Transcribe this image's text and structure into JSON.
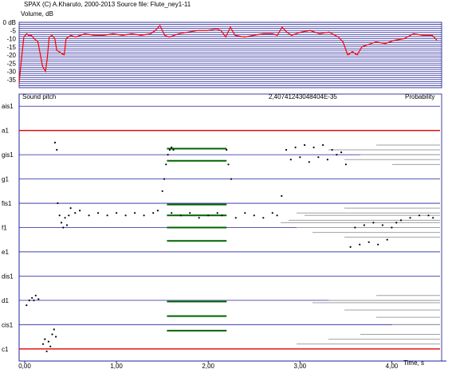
{
  "header": {
    "line": "SPAX  (C)  A.Kharuto,  2000-2013   Source file:  Flute_ney1-11",
    "volume_label": "Volume, dB"
  },
  "pitch": {
    "title": "Sound pitch",
    "value_readout": "2,40741243048404E-35",
    "probability_label": "Probability"
  },
  "chart_data": [
    {
      "type": "line",
      "title": "Volume, dB",
      "ylabel": "Volume, dB",
      "ylim": [
        -40,
        0
      ],
      "yticks": [
        "0 dB",
        "-5",
        "-10",
        "-15",
        "-20",
        "-25",
        "-30",
        "-35"
      ],
      "color": "#ff0000",
      "series": [
        {
          "x": [
            0.0,
            0.02,
            0.05,
            0.08,
            0.1,
            0.13,
            0.16,
            0.2,
            0.25,
            0.28,
            0.3,
            0.32,
            0.35,
            0.38,
            0.4,
            0.45,
            0.48,
            0.5,
            0.55,
            0.6,
            0.7,
            0.8,
            0.9,
            1.0,
            1.1,
            1.2,
            1.3,
            1.4,
            1.45,
            1.5,
            1.55,
            1.6,
            1.65,
            1.7,
            1.8,
            1.9,
            2.0,
            2.1,
            2.15,
            2.2,
            2.25,
            2.3,
            2.4,
            2.5,
            2.6,
            2.7,
            2.75,
            2.8,
            2.85,
            2.9,
            3.0,
            3.1,
            3.2,
            3.3,
            3.4,
            3.45,
            3.5,
            3.55,
            3.6,
            3.65,
            3.7,
            3.8,
            3.9,
            4.0,
            4.1,
            4.2,
            4.3,
            4.4,
            4.45
          ],
          "values": [
            -37,
            -25,
            -9,
            -7,
            -8,
            -8,
            -10,
            -12,
            -27,
            -30,
            -22,
            -9,
            -8,
            -10,
            -17,
            -19,
            -20,
            -10,
            -8,
            -9,
            -7,
            -8,
            -8,
            -7,
            -8,
            -7,
            -8,
            -7,
            -5,
            -2,
            -8,
            -9,
            -8,
            -7,
            -6,
            -5,
            -5,
            -4,
            -5,
            -9,
            -3,
            -8,
            -9,
            -8,
            -7,
            -7,
            -8,
            -3,
            -6,
            -8,
            -6,
            -5,
            -7,
            -6,
            -9,
            -12,
            -20,
            -18,
            -20,
            -15,
            -14,
            -12,
            -13,
            -11,
            -10,
            -7,
            -8,
            -8,
            -11
          ]
        }
      ]
    },
    {
      "type": "scatter",
      "title": "Sound pitch",
      "xlabel": "Time, s",
      "xlim": [
        0,
        4.5
      ],
      "xticks": [
        "0,00",
        "1,00",
        "2,00",
        "3,00",
        "4,00"
      ],
      "y_categories": [
        "c1",
        "cis1",
        "d1",
        "dis1",
        "e1",
        "f1",
        "fis1",
        "g1",
        "gis1",
        "a1",
        "ais1"
      ],
      "ylim": [
        -0.5,
        10.5
      ],
      "reference_lines": [
        {
          "note": "c1",
          "color": "#e00000"
        },
        {
          "note": "a1",
          "color": "#e00000"
        }
      ],
      "other_note_line_color": "#2020a0",
      "pitch_color": "#000000",
      "segments": [
        {
          "x": [
            0.02,
            0.05,
            0.08,
            0.1,
            0.12,
            0.15
          ],
          "values": [
            1.8,
            2.0,
            2.1,
            2.0,
            2.2,
            2.05
          ]
        },
        {
          "x": [
            0.2,
            0.22,
            0.24,
            0.26,
            0.28,
            0.3,
            0.32,
            0.34
          ],
          "values": [
            0.2,
            0.4,
            -0.1,
            0.3,
            0.1,
            0.6,
            0.8,
            0.5
          ]
        },
        {
          "x": [
            0.33,
            0.35
          ],
          "values": [
            8.5,
            8.2
          ]
        },
        {
          "x": [
            0.36,
            0.38,
            0.4,
            0.42,
            0.44,
            0.46,
            0.48,
            0.5,
            0.55,
            0.6,
            0.7,
            0.8,
            0.9,
            1.0,
            1.1,
            1.2,
            1.3,
            1.4,
            1.45
          ],
          "values": [
            6.0,
            5.5,
            5.2,
            5.0,
            5.4,
            5.1,
            5.5,
            5.8,
            5.6,
            5.7,
            5.5,
            5.6,
            5.5,
            5.6,
            5.5,
            5.6,
            5.5,
            5.6,
            5.7
          ]
        },
        {
          "x": [
            1.5,
            1.52,
            1.54,
            1.56,
            1.58,
            1.6,
            1.62
          ],
          "values": [
            6.5,
            7.0,
            7.6,
            8.0,
            8.2,
            8.3,
            8.2
          ]
        },
        {
          "x": [
            1.6,
            1.7,
            1.8,
            1.9,
            2.0,
            2.1,
            2.15,
            2.2,
            2.22,
            2.25
          ],
          "values": [
            5.6,
            5.5,
            5.6,
            5.4,
            5.5,
            5.6,
            5.5,
            8.2,
            7.6,
            7.0
          ]
        },
        {
          "x": [
            2.3,
            2.4,
            2.5,
            2.6,
            2.7,
            2.75,
            2.8
          ],
          "values": [
            5.4,
            5.6,
            5.5,
            5.4,
            5.6,
            5.5,
            6.3
          ]
        },
        {
          "x": [
            2.85,
            2.9,
            2.95,
            3.0,
            3.05,
            3.1,
            3.15,
            3.2,
            3.25,
            3.3,
            3.35,
            3.4,
            3.45,
            3.5
          ],
          "values": [
            8.2,
            7.8,
            8.3,
            7.9,
            8.4,
            7.7,
            8.3,
            7.9,
            8.4,
            7.8,
            8.2,
            8.0,
            8.1,
            7.6
          ]
        },
        {
          "x": [
            3.55,
            3.6,
            3.65,
            3.7,
            3.75,
            3.8,
            3.85,
            3.9,
            3.95,
            4.0,
            4.05,
            4.1,
            4.2,
            4.3,
            4.4,
            4.45
          ],
          "values": [
            4.2,
            5.0,
            4.3,
            5.1,
            4.4,
            5.2,
            4.3,
            5.1,
            4.5,
            5.0,
            5.2,
            5.3,
            5.4,
            5.5,
            5.5,
            5.4
          ]
        }
      ],
      "green_bars": {
        "x_start": 1.55,
        "x_end": 2.2,
        "color": "#006400",
        "levels": [
          8.25,
          7.75,
          5.95,
          5.5,
          5.0,
          4.45,
          1.95,
          1.35,
          0.75
        ]
      },
      "probability_profile": {
        "color": "#a0a0a0",
        "levels": [
          0.2,
          0.4,
          0.6,
          1.0,
          1.3,
          1.6,
          1.9,
          2.0,
          2.2,
          4.6,
          4.8,
          5.0,
          5.2,
          5.3,
          5.5,
          5.6,
          5.8,
          7.6,
          7.8,
          8.0,
          8.2,
          8.4
        ],
        "weights": [
          0.9,
          0.7,
          0.5,
          0.3,
          0.4,
          0.6,
          0.8,
          0.7,
          0.4,
          0.6,
          0.8,
          0.9,
          1.0,
          0.95,
          0.85,
          0.9,
          0.6,
          0.3,
          0.6,
          0.5,
          0.7,
          0.4
        ]
      }
    }
  ]
}
